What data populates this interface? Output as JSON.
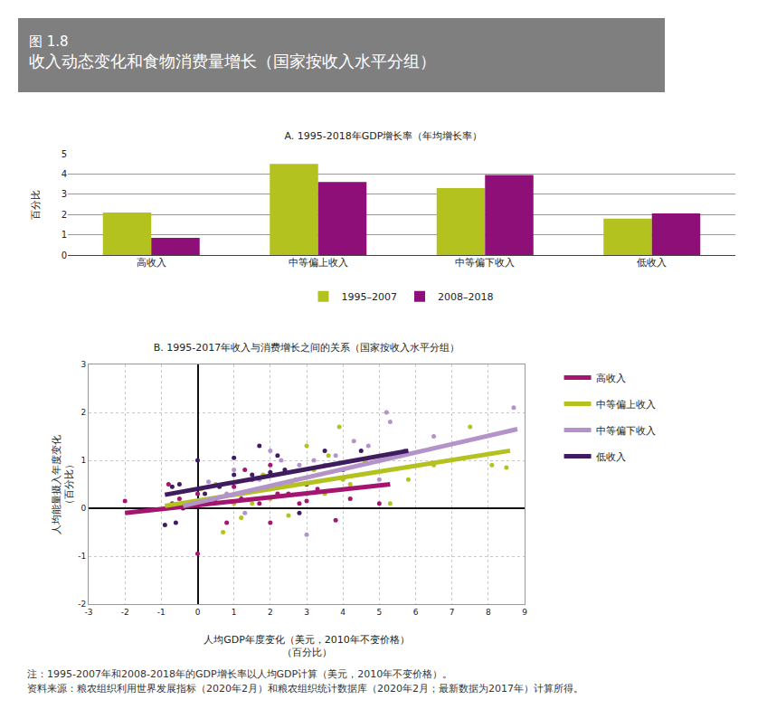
{
  "header": {
    "figure": "图 1.8",
    "title": "收入动态变化和食物消费量增长（国家按收入水平分组）"
  },
  "notes": [
    "注：1995-2007年和2008-2018年的GDP增长率以人均GDP计算（美元，2010年不变价格）。",
    "资料来源：粮农组织利用世界发展指标（2020年2月）和粮农组织统计数据库（2020年2月；最新数据为2017年）计算所得。"
  ],
  "chart_data": [
    {
      "type": "bar",
      "title": "A. 1995-2018年GDP增长率（年均增长率）",
      "y_label": "百分比",
      "categories": [
        "高收入",
        "中等偏上收入",
        "中等偏下收入",
        "低收入"
      ],
      "series": [
        {
          "name": "1995–2007",
          "color": "#b4c21f",
          "values": [
            2.1,
            4.5,
            3.3,
            1.8
          ]
        },
        {
          "name": "2008–2018",
          "color": "#8e0f78",
          "values": [
            0.85,
            3.6,
            3.95,
            2.05
          ]
        }
      ],
      "ylim": [
        0,
        5
      ],
      "yticks": [
        0,
        1,
        2,
        3,
        4,
        5
      ],
      "grid": true,
      "legend": "bottom"
    },
    {
      "type": "scatter",
      "title": "B. 1995-2017年收入与消费增长之间的关系（国家按收入水平分组）",
      "x_label": "人均GDP年度变化（美元，2010年不变价格）\n（百分比）",
      "y_label": "人均能量摄入年度变化\n（百分比）",
      "xlim": [
        -3,
        9
      ],
      "xticks": [
        -3,
        -2,
        -1,
        0,
        1,
        2,
        3,
        4,
        5,
        6,
        7,
        8,
        9
      ],
      "ylim": [
        -2,
        3
      ],
      "yticks": [
        -2,
        -1,
        0,
        1,
        2,
        3
      ],
      "grid": true,
      "legend": "right",
      "series": [
        {
          "name": "高收入",
          "color": "#a3156f",
          "x": [
            -2,
            -0.8,
            -0.7,
            -0.5,
            0,
            0,
            0.2,
            0.5,
            0.8,
            1,
            1.2,
            1.5,
            1.7,
            2,
            2.2,
            2.5,
            2.8,
            3,
            3.3,
            3.8,
            4,
            4.2,
            5,
            2,
            1.3
          ],
          "y": [
            0.15,
            0.5,
            0.1,
            0.2,
            -0.95,
            0.3,
            0.1,
            0.2,
            -0.3,
            0.45,
            0.2,
            0.6,
            0.1,
            0.9,
            0.3,
            0.3,
            0.1,
            0.15,
            0.4,
            -0.25,
            0.8,
            0.2,
            0.1,
            -0.3,
            0.8
          ],
          "trend_x": [
            -2,
            5.3
          ],
          "trend_y": [
            -0.1,
            0.5
          ]
        },
        {
          "name": "中等偏上收入",
          "color": "#b4c21f",
          "x": [
            0.1,
            0.5,
            0.7,
            1,
            1.5,
            1.8,
            2,
            2.3,
            2.5,
            2.7,
            3,
            3.2,
            3.5,
            3.9,
            4,
            4.2,
            4.6,
            5.3,
            5.8,
            6.5,
            7.5,
            8.1,
            8.5,
            3.6,
            1.2
          ],
          "y": [
            0.4,
            0.5,
            -0.5,
            0.1,
            0.1,
            0.7,
            0.2,
            0.5,
            -0.15,
            0.6,
            1.3,
            0.8,
            0.3,
            1.7,
            0.6,
            0.5,
            0.95,
            0.1,
            0.6,
            0.9,
            1.7,
            0.9,
            0.85,
            1.1,
            -0.2
          ],
          "trend_x": [
            -0.9,
            8.6
          ],
          "trend_y": [
            0.05,
            1.2
          ]
        },
        {
          "name": "中等偏下收入",
          "color": "#b393c9",
          "x": [
            0.3,
            0.8,
            1,
            1.3,
            1.7,
            2,
            2.3,
            2.6,
            3,
            3,
            3.2,
            3.5,
            3.8,
            4.3,
            5,
            5.2,
            5.3,
            5.7,
            6.5,
            8.7,
            2.8,
            4.7
          ],
          "y": [
            0.55,
            0.3,
            0.8,
            -0.1,
            0.6,
            1.2,
            1.0,
            0.5,
            0.3,
            -0.55,
            1.0,
            0.9,
            1.1,
            1.4,
            0.6,
            2.0,
            1.8,
            1.2,
            1.5,
            2.1,
            0.9,
            1.3
          ],
          "trend_x": [
            -0.4,
            8.8
          ],
          "trend_y": [
            0.05,
            1.65
          ]
        },
        {
          "name": "低收入",
          "color": "#3f1b60",
          "x": [
            -0.9,
            -0.7,
            -0.6,
            -0.5,
            -0.4,
            0,
            0,
            0.2,
            0.6,
            1,
            1.2,
            1.5,
            1.7,
            2,
            2.2,
            2.4,
            2.8,
            3,
            3.5,
            4.5,
            1
          ],
          "y": [
            -0.35,
            0.45,
            -0.3,
            0.5,
            0.0,
            1.0,
            0.05,
            0.3,
            0.45,
            0.7,
            0.3,
            0.7,
            1.3,
            0.75,
            1.1,
            0.8,
            -0.1,
            0.5,
            1.2,
            1.2,
            1.05
          ],
          "trend_x": [
            -0.9,
            5.8
          ],
          "trend_y": [
            0.28,
            1.2
          ]
        }
      ]
    }
  ]
}
